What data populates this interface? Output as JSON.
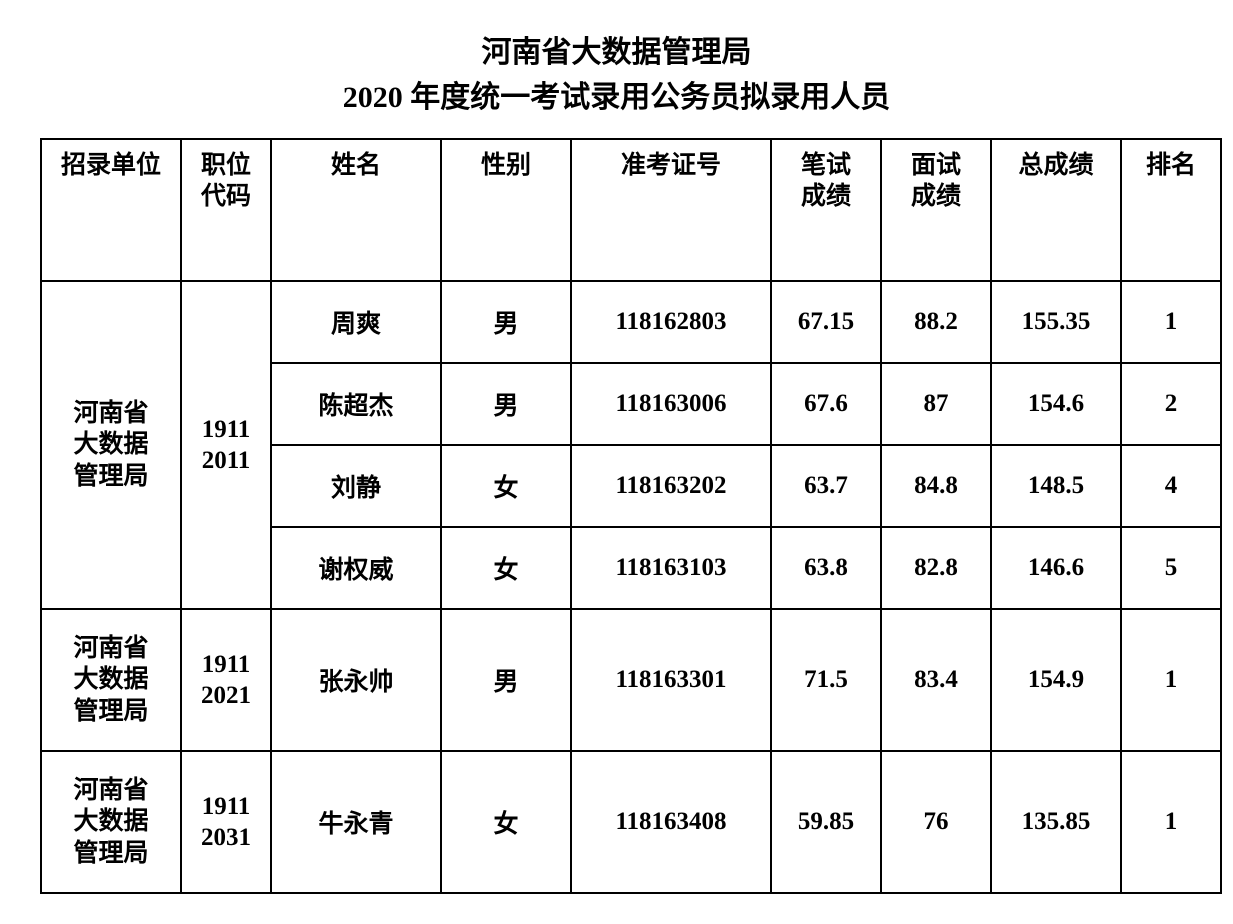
{
  "title": {
    "line1": "河南省大数据管理局",
    "line2": "2020 年度统一考试录用公务员拟录用人员"
  },
  "table": {
    "headers": {
      "unit": "招录单位",
      "code": "职位\n代码",
      "name": "姓名",
      "gender": "性别",
      "exam_no": "准考证号",
      "written": "笔试\n成绩",
      "interview": "面试\n成绩",
      "total": "总成绩",
      "rank": "排名"
    },
    "groups": [
      {
        "unit": "河南省\n大数据\n管理局",
        "code": "1911\n2011",
        "rows": [
          {
            "name": "周爽",
            "gender": "男",
            "exam_no": "118162803",
            "written": "67.15",
            "interview": "88.2",
            "total": "155.35",
            "rank": "1"
          },
          {
            "name": "陈超杰",
            "gender": "男",
            "exam_no": "118163006",
            "written": "67.6",
            "interview": "87",
            "total": "154.6",
            "rank": "2"
          },
          {
            "name": "刘静",
            "gender": "女",
            "exam_no": "118163202",
            "written": "63.7",
            "interview": "84.8",
            "total": "148.5",
            "rank": "4"
          },
          {
            "name": "谢权威",
            "gender": "女",
            "exam_no": "118163103",
            "written": "63.8",
            "interview": "82.8",
            "total": "146.6",
            "rank": "5"
          }
        ]
      },
      {
        "unit": "河南省\n大数据\n管理局",
        "code": "1911\n2021",
        "rows": [
          {
            "name": "张永帅",
            "gender": "男",
            "exam_no": "118163301",
            "written": "71.5",
            "interview": "83.4",
            "total": "154.9",
            "rank": "1"
          }
        ]
      },
      {
        "unit": "河南省\n大数据\n管理局",
        "code": "1911\n2031",
        "rows": [
          {
            "name": "牛永青",
            "gender": "女",
            "exam_no": "118163408",
            "written": "59.85",
            "interview": "76",
            "total": "135.85",
            "rank": "1"
          }
        ]
      }
    ]
  },
  "style": {
    "background_color": "#ffffff",
    "text_color": "#000000",
    "border_color": "#000000",
    "title_fontsize": 30,
    "cell_fontsize": 25,
    "font_family": "SimSun"
  }
}
